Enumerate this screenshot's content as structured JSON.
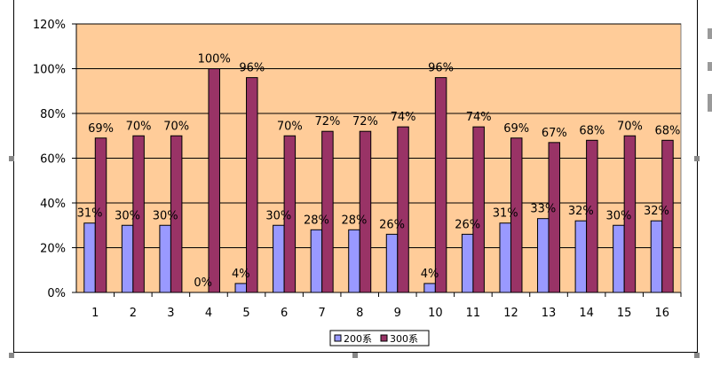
{
  "chart_data": {
    "type": "bar",
    "categories": [
      "1",
      "2",
      "3",
      "4",
      "5",
      "6",
      "7",
      "8",
      "9",
      "10",
      "11",
      "12",
      "13",
      "14",
      "15",
      "16"
    ],
    "series": [
      {
        "name": "200系",
        "color": "#9999ff",
        "values": [
          31,
          30,
          30,
          0,
          4,
          30,
          28,
          28,
          26,
          4,
          26,
          31,
          33,
          32,
          30,
          32
        ],
        "labels": [
          "31%",
          "30%",
          "30%",
          "0%",
          "4%",
          "30%",
          "28%",
          "28%",
          "26%",
          "4%",
          "26%",
          "31%",
          "33%",
          "32%",
          "30%",
          "32%"
        ]
      },
      {
        "name": "300系",
        "color": "#993366",
        "values": [
          69,
          70,
          70,
          100,
          96,
          70,
          72,
          72,
          74,
          96,
          74,
          69,
          67,
          68,
          70,
          68
        ],
        "labels": [
          "69%",
          "70%",
          "70%",
          "100%",
          "96%",
          "70%",
          "72%",
          "72%",
          "74%",
          "96%",
          "74%",
          "69%",
          "67%",
          "68%",
          "70%",
          "68%"
        ]
      }
    ],
    "yticks": [
      "0%",
      "20%",
      "40%",
      "60%",
      "80%",
      "100%",
      "120%"
    ],
    "ylim": [
      0,
      120
    ],
    "title": "",
    "xlabel": "",
    "ylabel": "",
    "grid": "horizontal",
    "legend": "bottom-center",
    "plot_background": "#ffcc99"
  }
}
